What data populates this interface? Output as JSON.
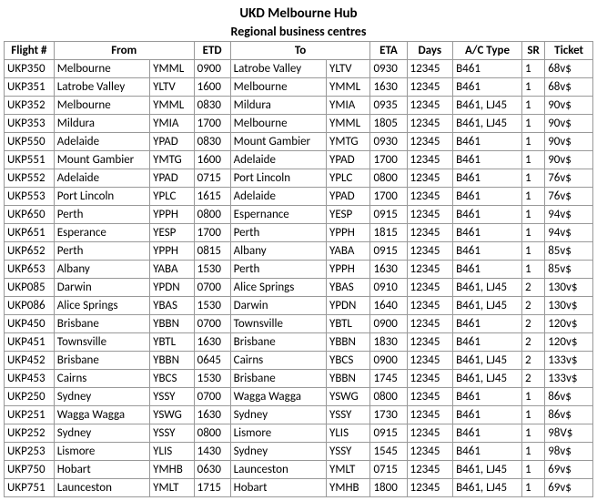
{
  "header": {
    "title": "UKD Melbourne Hub",
    "subtitle": "Regional business centres"
  },
  "columns": [
    "Flight #",
    "From",
    "ETD",
    "To",
    "ETA",
    "Days",
    "A/C Type",
    "SR",
    "Ticket"
  ],
  "rows": [
    {
      "flight": "UKP350",
      "from": "Melbourne",
      "fcode": "YMML",
      "etd": "0900",
      "to": "Latrobe Valley",
      "tcode": "YLTV",
      "eta": "0930",
      "days": "12345",
      "ac": "B461",
      "sr": "1",
      "ticket": "68v$"
    },
    {
      "flight": "UKP351",
      "from": "Latrobe Valley",
      "fcode": "YLTV",
      "etd": "1600",
      "to": "Melbourne",
      "tcode": "YMML",
      "eta": "1630",
      "days": "12345",
      "ac": "B461",
      "sr": "1",
      "ticket": "68v$"
    },
    {
      "flight": "UKP352",
      "from": "Melbourne",
      "fcode": "YMML",
      "etd": "0830",
      "to": "Mildura",
      "tcode": "YMIA",
      "eta": "0935",
      "days": "12345",
      "ac": "B461, LJ45",
      "sr": "1",
      "ticket": "90v$"
    },
    {
      "flight": "UKP353",
      "from": "Mildura",
      "fcode": "YMIA",
      "etd": "1700",
      "to": "Melbourne",
      "tcode": "YMML",
      "eta": "1805",
      "days": "12345",
      "ac": "B461, LJ45",
      "sr": "1",
      "ticket": "90v$"
    },
    {
      "flight": "UKP550",
      "from": "Adelaide",
      "fcode": "YPAD",
      "etd": "0830",
      "to": "Mount Gambier",
      "tcode": "YMTG",
      "eta": "0930",
      "days": "12345",
      "ac": "B461",
      "sr": "1",
      "ticket": "90v$"
    },
    {
      "flight": "UKP551",
      "from": "Mount Gambier",
      "fcode": "YMTG",
      "etd": "1600",
      "to": "Adelaide",
      "tcode": "YPAD",
      "eta": "1700",
      "days": "12345",
      "ac": "B461",
      "sr": "1",
      "ticket": "90v$"
    },
    {
      "flight": "UKP552",
      "from": "Adelaide",
      "fcode": "YPAD",
      "etd": "0715",
      "to": "Port Lincoln",
      "tcode": "YPLC",
      "eta": "0800",
      "days": "12345",
      "ac": "B461",
      "sr": "1",
      "ticket": "76v$"
    },
    {
      "flight": "UKP553",
      "from": "Port Lincoln",
      "fcode": "YPLC",
      "etd": "1615",
      "to": "Adelaide",
      "tcode": "YPAD",
      "eta": "1700",
      "days": "12345",
      "ac": "B461",
      "sr": "1",
      "ticket": "76v$"
    },
    {
      "flight": "UKP650",
      "from": "Perth",
      "fcode": "YPPH",
      "etd": "0800",
      "to": "Espernance",
      "tcode": "YESP",
      "eta": "0915",
      "days": "12345",
      "ac": "B461",
      "sr": "1",
      "ticket": "94v$"
    },
    {
      "flight": "UKP651",
      "from": "Esperance",
      "fcode": "YESP",
      "etd": "1700",
      "to": "Perth",
      "tcode": "YPPH",
      "eta": "1815",
      "days": "12345",
      "ac": "B461",
      "sr": "1",
      "ticket": "94v$"
    },
    {
      "flight": "UKP652",
      "from": "Perth",
      "fcode": "YPPH",
      "etd": "0815",
      "to": "Albany",
      "tcode": "YABA",
      "eta": "0915",
      "days": "12345",
      "ac": "B461",
      "sr": "1",
      "ticket": "85v$"
    },
    {
      "flight": "UKP653",
      "from": "Albany",
      "fcode": "YABA",
      "etd": "1530",
      "to": "Perth",
      "tcode": "YPPH",
      "eta": "1630",
      "days": "12345",
      "ac": "B461",
      "sr": "1",
      "ticket": "85v$"
    },
    {
      "flight": "UKP085",
      "from": "Darwin",
      "fcode": "YPDN",
      "etd": "0700",
      "to": "Alice Springs",
      "tcode": "YBAS",
      "eta": "0910",
      "days": "12345",
      "ac": "B461, LJ45",
      "sr": "2",
      "ticket": "130v$"
    },
    {
      "flight": "UKP086",
      "from": "Alice Springs",
      "fcode": "YBAS",
      "etd": "1530",
      "to": "Darwin",
      "tcode": "YPDN",
      "eta": "1640",
      "days": "12345",
      "ac": "B461, LJ45",
      "sr": "2",
      "ticket": "130v$"
    },
    {
      "flight": "UKP450",
      "from": "Brisbane",
      "fcode": "YBBN",
      "etd": "0700",
      "to": "Townsville",
      "tcode": "YBTL",
      "eta": "0900",
      "days": "12345",
      "ac": "B461",
      "sr": "2",
      "ticket": "120v$"
    },
    {
      "flight": "UKP451",
      "from": "Townsville",
      "fcode": "YBTL",
      "etd": "1630",
      "to": "Brisbane",
      "tcode": "YBBN",
      "eta": "1830",
      "days": "12345",
      "ac": "B461",
      "sr": "2",
      "ticket": "120v$"
    },
    {
      "flight": "UKP452",
      "from": "Brisbane",
      "fcode": "YBBN",
      "etd": "0645",
      "to": "Cairns",
      "tcode": "YBCS",
      "eta": "0900",
      "days": "12345",
      "ac": "B461, LJ45",
      "sr": "2",
      "ticket": "133v$"
    },
    {
      "flight": "UKP453",
      "from": "Cairns",
      "fcode": "YBCS",
      "etd": "1530",
      "to": "Brisbane",
      "tcode": "YBBN",
      "eta": "1745",
      "days": "12345",
      "ac": "B461, LJ45",
      "sr": "2",
      "ticket": "133v$"
    },
    {
      "flight": "UKP250",
      "from": "Sydney",
      "fcode": "YSSY",
      "etd": "0700",
      "to": "Wagga Wagga",
      "tcode": "YSWG",
      "eta": "0800",
      "days": "12345",
      "ac": "B461",
      "sr": "1",
      "ticket": "86v$"
    },
    {
      "flight": "UKP251",
      "from": "Wagga Wagga",
      "fcode": "YSWG",
      "etd": "1630",
      "to": "Sydney",
      "tcode": "YSSY",
      "eta": "1730",
      "days": "12345",
      "ac": "B461",
      "sr": "1",
      "ticket": "86v$"
    },
    {
      "flight": "UKP252",
      "from": "Sydney",
      "fcode": "YSSY",
      "etd": "0800",
      "to": "Lismore",
      "tcode": "YLIS",
      "eta": "0915",
      "days": "12345",
      "ac": "B461",
      "sr": "1",
      "ticket": "98V$"
    },
    {
      "flight": "UKP253",
      "from": "Lismore",
      "fcode": "YLIS",
      "etd": "1430",
      "to": "Sydney",
      "tcode": "YSSY",
      "eta": "1545",
      "days": "12345",
      "ac": "B461",
      "sr": "1",
      "ticket": "98v$"
    },
    {
      "flight": "UKP750",
      "from": "Hobart",
      "fcode": "YMHB",
      "etd": "0630",
      "to": "Launceston",
      "tcode": "YMLT",
      "eta": "0715",
      "days": "12345",
      "ac": "B461, LJ45",
      "sr": "1",
      "ticket": "69v$"
    },
    {
      "flight": "UKP751",
      "from": "Launceston",
      "fcode": "YMLT",
      "etd": "1715",
      "to": "Hobart",
      "tcode": "YMHB",
      "eta": "1800",
      "days": "12345",
      "ac": "B461, LJ45",
      "sr": "1",
      "ticket": "69v$"
    }
  ]
}
